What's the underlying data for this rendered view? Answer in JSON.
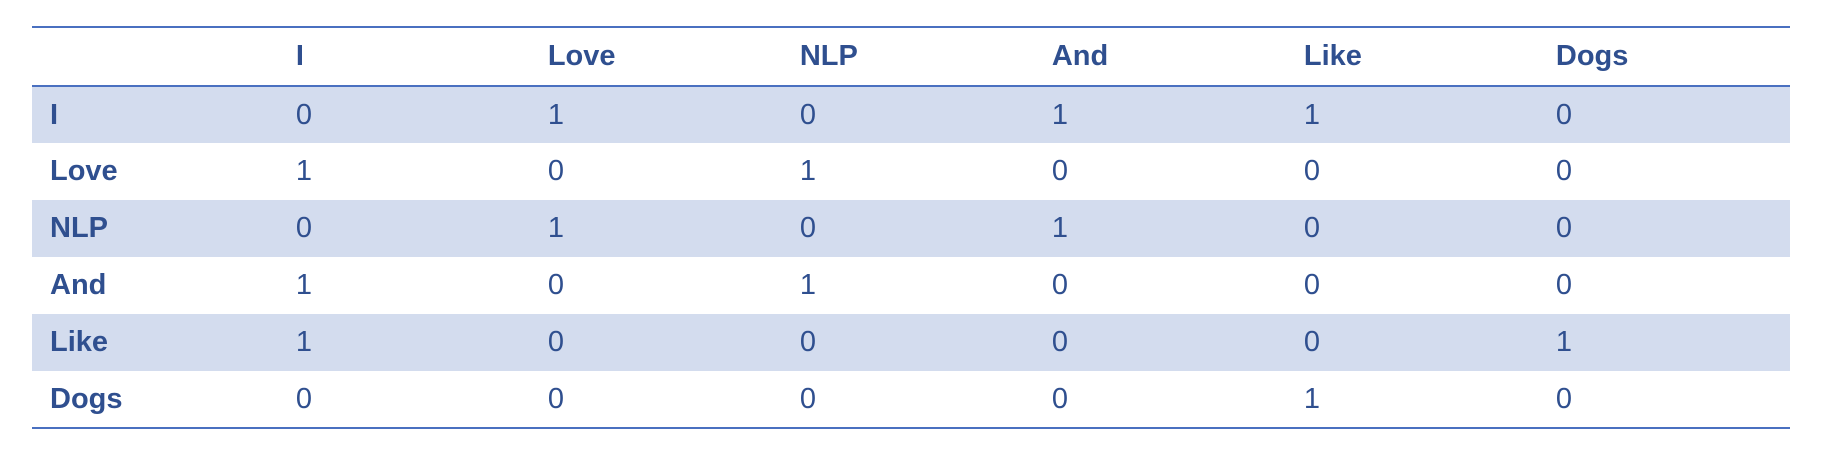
{
  "table": {
    "corner": "",
    "columns": [
      "I",
      "Love",
      "NLP",
      "And",
      "Like",
      "Dogs"
    ],
    "rows": [
      {
        "label": "I",
        "values": [
          "0",
          "1",
          "0",
          "1",
          "1",
          "0"
        ]
      },
      {
        "label": "Love",
        "values": [
          "1",
          "0",
          "1",
          "0",
          "0",
          "0"
        ]
      },
      {
        "label": "NLP",
        "values": [
          "0",
          "1",
          "0",
          "1",
          "0",
          "0"
        ]
      },
      {
        "label": "And",
        "values": [
          "1",
          "0",
          "1",
          "0",
          "0",
          "0"
        ]
      },
      {
        "label": "Like",
        "values": [
          "1",
          "0",
          "0",
          "0",
          "0",
          "1"
        ]
      },
      {
        "label": "Dogs",
        "values": [
          "0",
          "0",
          "0",
          "0",
          "1",
          "0"
        ]
      }
    ]
  },
  "colors": {
    "text": "#2f4f8f",
    "rule": "#4a70c0",
    "band": "#d3dcee",
    "background": "#ffffff"
  }
}
